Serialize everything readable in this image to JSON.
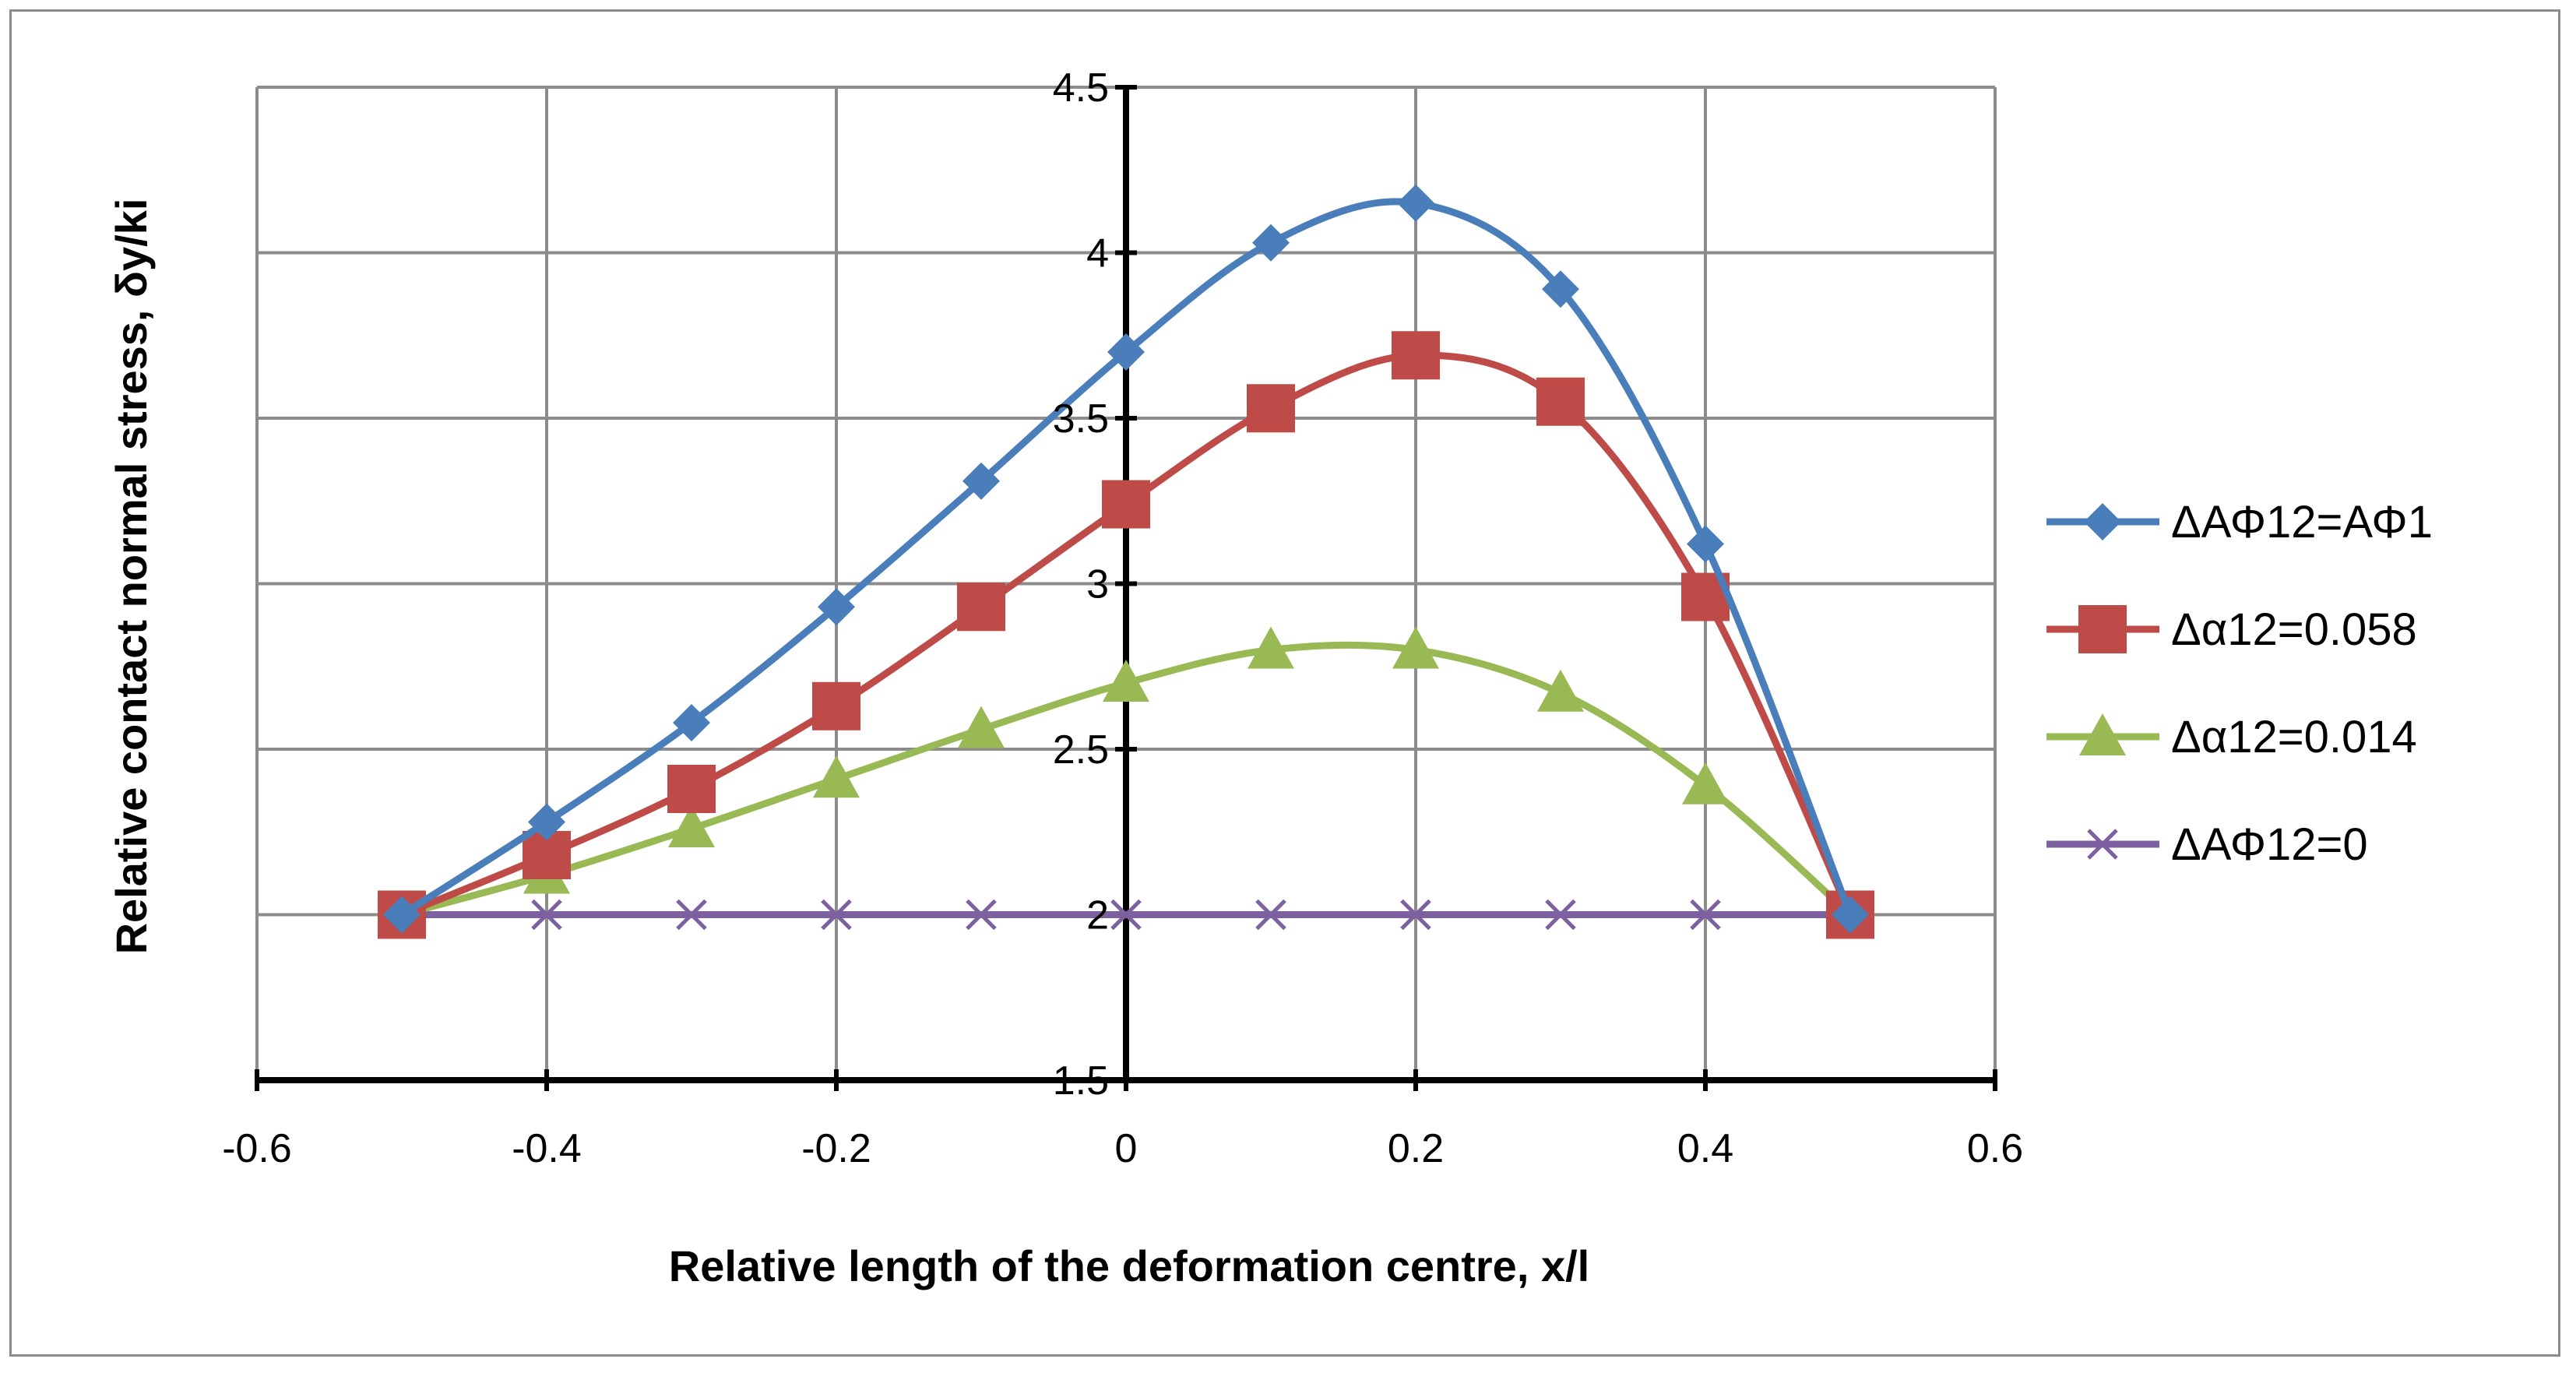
{
  "chart_data": {
    "type": "line",
    "title": "",
    "xlabel": "Relative length of the deformation centre, x/l",
    "ylabel": "Relative contact normal stress, δy/ki",
    "xlim": [
      -0.6,
      0.6
    ],
    "ylim": [
      1.5,
      4.5
    ],
    "x_ticks": [
      "-0.6",
      "-0.4",
      "-0.2",
      "0",
      "0.2",
      "0.4",
      "0.6"
    ],
    "y_ticks": [
      "1.5",
      "2",
      "2.5",
      "3",
      "3.5",
      "4",
      "4.5"
    ],
    "grid": true,
    "smooth": true,
    "legend_position": "right",
    "series": [
      {
        "name": "ΔΑΦ12=ΑΦ1",
        "color": "#4a7ebb",
        "marker": "diamond",
        "x": [
          -0.5,
          -0.4,
          -0.3,
          -0.2,
          -0.1,
          0,
          0.1,
          0.2,
          0.3,
          0.4,
          0.5
        ],
        "y": [
          2.0,
          2.28,
          2.58,
          2.93,
          3.31,
          3.7,
          4.03,
          4.15,
          3.89,
          3.12,
          2.0
        ]
      },
      {
        "name": "Δα12=0.058",
        "color": "#be4b48",
        "marker": "square",
        "x": [
          -0.5,
          -0.4,
          -0.3,
          -0.2,
          -0.1,
          0,
          0.1,
          0.2,
          0.3,
          0.4,
          0.5
        ],
        "y": [
          2.0,
          2.18,
          2.38,
          2.63,
          2.93,
          3.24,
          3.53,
          3.69,
          3.55,
          2.96,
          2.0
        ]
      },
      {
        "name": "Δα12=0.014",
        "color": "#98b954",
        "marker": "triangle",
        "x": [
          -0.5,
          -0.4,
          -0.3,
          -0.2,
          -0.1,
          0,
          0.1,
          0.2,
          0.3,
          0.4,
          0.5
        ],
        "y": [
          2.0,
          2.12,
          2.26,
          2.41,
          2.56,
          2.7,
          2.8,
          2.8,
          2.67,
          2.39,
          2.0
        ]
      },
      {
        "name": "ΔΑΦ12=0",
        "color": "#7d60a0",
        "marker": "x",
        "x": [
          -0.5,
          -0.4,
          -0.3,
          -0.2,
          -0.1,
          0,
          0.1,
          0.2,
          0.3,
          0.4,
          0.5
        ],
        "y": [
          2.0,
          2.0,
          2.0,
          2.0,
          2.0,
          2.0,
          2.0,
          2.0,
          2.0,
          2.0,
          2.0
        ]
      }
    ]
  }
}
